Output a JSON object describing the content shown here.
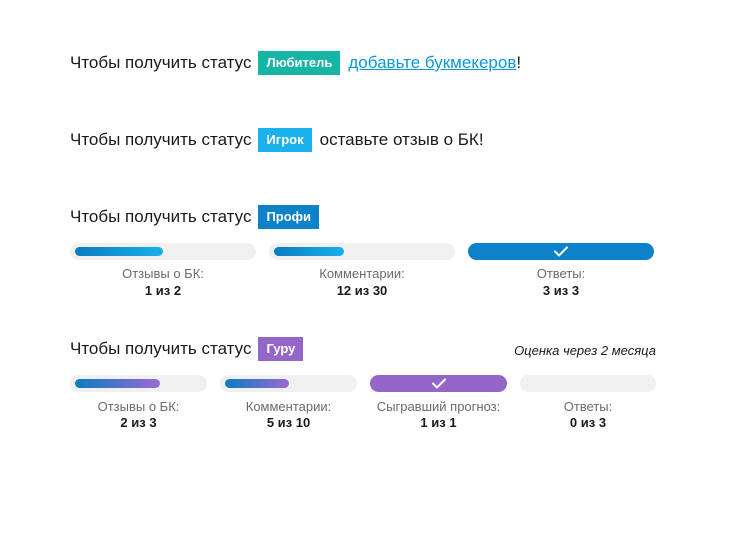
{
  "s1": {
    "prefix": "Чтобы получить статус",
    "badge": "Любитель",
    "link": "добавьте букмекеров",
    "suffix": "!"
  },
  "s2": {
    "prefix": "Чтобы получить статус",
    "badge": "Игрок",
    "suffix": "оставьте отзыв о БК!"
  },
  "s3": {
    "prefix": "Чтобы получить статус",
    "badge": "Профи",
    "items": [
      {
        "label": "Отзывы о БК:",
        "value": "1 из 2",
        "progress": 0.5
      },
      {
        "label": "Комментарии:",
        "value": "12 из 30",
        "progress": 0.4
      },
      {
        "label": "Ответы:",
        "value": "3 из 3",
        "progress": 1.0
      }
    ]
  },
  "s4": {
    "prefix": "Чтобы получить статус",
    "badge": "Гуру",
    "note": "Оценка через 2 месяца",
    "items": [
      {
        "label": "Отзывы о БК:",
        "value": "2 из 3",
        "progress": 0.67
      },
      {
        "label": "Комментарии:",
        "value": "5 из 10",
        "progress": 0.5
      },
      {
        "label": "Сыгравший прогноз:",
        "value": "1 из 1",
        "progress": 1.0
      },
      {
        "label": "Ответы:",
        "value": "0 из 3",
        "progress": 0.0
      }
    ]
  },
  "colors": {
    "teal": "#16b5a6",
    "cyan": "#1ab2ec",
    "blue": "#0d82c8",
    "purple": "#9366c8",
    "link": "#0a98d6"
  },
  "icons": {
    "complete": "check-icon"
  }
}
